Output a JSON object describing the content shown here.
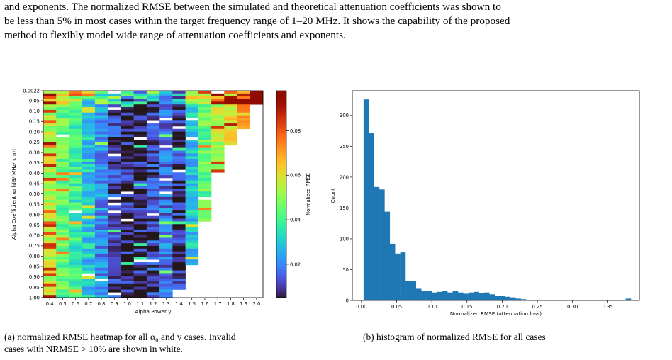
{
  "paragraph": {
    "line1": "and exponents. The normalized RMSE between the simulated and theoretical attenuation coefficients was shown to",
    "line2": "be less than 5% in most cases within the target frequency range of 1–20 MHz. It shows the capability of the proposed",
    "line3": "method to flexibly model wide range of attenuation coefficients and exponents."
  },
  "captions": {
    "a": "(a) normalized RMSE heatmap for all α₀ and y cases. Invalid cases with NRMSE > 10% are shown in white.",
    "a_line1": "(a) normalized RMSE heatmap for all α₀ and y cases. Invalid",
    "a_line2": "cases with NRMSE > 10% are shown in white.",
    "b": "(b) histogram of normalized RMSE for all cases"
  },
  "chart_data": [
    {
      "type": "heatmap",
      "xlabel": "Alpha Power y",
      "ylabel": "Alpha Coefficient α₀ [dB/(MHzʸ cm)]",
      "x": [
        "0.4",
        "0.5",
        "0.6",
        "0.7",
        "0.8",
        "0.9",
        "1.0",
        "1.1",
        "1.2",
        "1.3",
        "1.4",
        "1.5",
        "1.6",
        "1.7",
        "1.8",
        "1.9",
        "2.0"
      ],
      "y": [
        "0.0022",
        "0.05",
        "0.10",
        "0.15",
        "0.20",
        "0.25",
        "0.30",
        "0.35",
        "0.40",
        "0.45",
        "0.50",
        "0.55",
        "0.60",
        "0.65",
        "0.70",
        "0.75",
        "0.80",
        "0.85",
        "0.90",
        "0.95",
        "1.00"
      ],
      "colorbar": {
        "label": "Normalized RMSE",
        "ticks": [
          "0.02",
          "0.04",
          "0.06",
          "0.08"
        ],
        "range": [
          0.005,
          0.098
        ],
        "colormap": "turbo"
      },
      "column_base_values": [
        0.055,
        0.045,
        0.038,
        0.03,
        0.022,
        0.012,
        0.008,
        0.008,
        0.012,
        0.018,
        0.01,
        0.03,
        0.045,
        0.055,
        0.06,
        0.07,
        0.09
      ],
      "valid_max_alpha": [
        1.0,
        1.0,
        1.0,
        1.0,
        1.0,
        1.0,
        1.0,
        1.0,
        1.0,
        1.0,
        0.95,
        0.84,
        0.63,
        0.39,
        0.26,
        0.18,
        0.06
      ],
      "invalid_color": "#ffffff"
    },
    {
      "type": "bar",
      "xlabel": "Normalized RMSE (attenuation loss)",
      "ylabel": "Count",
      "xlim": [
        -0.013,
        0.395
      ],
      "ylim": [
        0,
        340
      ],
      "xticks": [
        "0.00",
        "0.05",
        "0.10",
        "0.15",
        "0.20",
        "0.25",
        "0.30",
        "0.35"
      ],
      "yticks": [
        "0",
        "50",
        "100",
        "150",
        "200",
        "250",
        "300"
      ],
      "bar_color": "#1f77b4",
      "bin_start": 0.003,
      "bin_width": 0.00745,
      "values": [
        326,
        272,
        184,
        180,
        144,
        92,
        76,
        78,
        32,
        32,
        19,
        16,
        15,
        13,
        14,
        15,
        13,
        15,
        13,
        11,
        13,
        14,
        12,
        13,
        10,
        8,
        7,
        6,
        5,
        3,
        2,
        1,
        1,
        1,
        0,
        0,
        0,
        0,
        0,
        0,
        0,
        0,
        0,
        0,
        0,
        0,
        0,
        0,
        0,
        0,
        3
      ]
    }
  ]
}
